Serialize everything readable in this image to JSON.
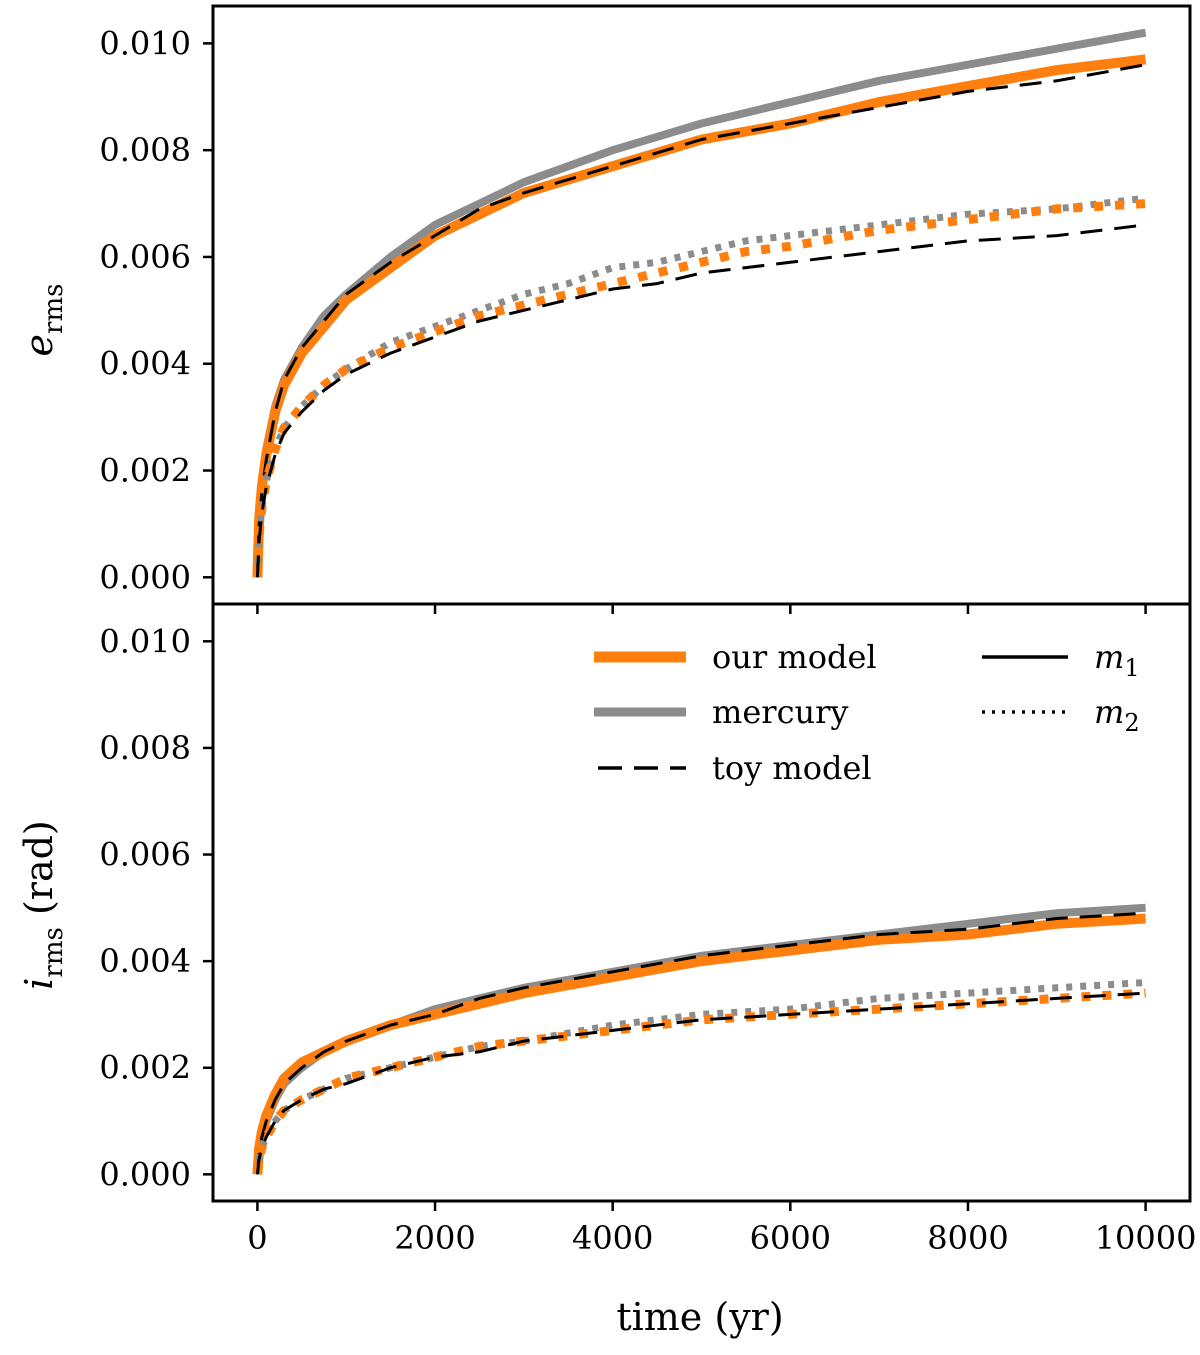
{
  "chart_data": [
    {
      "type": "line",
      "panel": "top",
      "ylabel": "e",
      "ylabel_sub": "rms",
      "xlabel": "",
      "xlim": [
        -500,
        10500
      ],
      "ylim": [
        -0.0005,
        0.0107
      ],
      "xticks": [
        0,
        2000,
        4000,
        6000,
        8000,
        10000
      ],
      "yticks": [
        0.0,
        0.002,
        0.004,
        0.006,
        0.008,
        0.01
      ],
      "ytick_labels": [
        "0.000",
        "0.002",
        "0.004",
        "0.006",
        "0.008",
        "0.010"
      ],
      "series": [
        {
          "name": "mercury m1",
          "style": "solid",
          "color": "#8c8c8c",
          "width": 8,
          "x": [
            0,
            20,
            50,
            100,
            200,
            300,
            500,
            750,
            1000,
            1500,
            2000,
            2500,
            3000,
            4000,
            5000,
            6000,
            7000,
            8000,
            9000,
            10000
          ],
          "values": [
            0,
            0.0012,
            0.0018,
            0.0024,
            0.0032,
            0.0037,
            0.0043,
            0.0049,
            0.0053,
            0.006,
            0.0066,
            0.007,
            0.0074,
            0.008,
            0.0085,
            0.0089,
            0.0093,
            0.0096,
            0.0099,
            0.0102
          ]
        },
        {
          "name": "our model m1",
          "style": "solid",
          "color": "#ff7f0e",
          "width": 10,
          "x": [
            0,
            20,
            50,
            100,
            200,
            300,
            500,
            750,
            1000,
            1500,
            2000,
            2500,
            3000,
            4000,
            5000,
            6000,
            7000,
            8000,
            9000,
            10000
          ],
          "values": [
            0,
            0.0011,
            0.0017,
            0.0023,
            0.0031,
            0.0036,
            0.0042,
            0.0047,
            0.0052,
            0.0058,
            0.0064,
            0.0068,
            0.0072,
            0.0077,
            0.0082,
            0.0085,
            0.0089,
            0.0092,
            0.0095,
            0.0097
          ]
        },
        {
          "name": "toy model m1",
          "style": "dashed",
          "color": "#000000",
          "width": 3,
          "x": [
            0,
            20,
            50,
            100,
            200,
            300,
            500,
            750,
            1000,
            1500,
            2000,
            2500,
            3000,
            4000,
            5000,
            6000,
            7000,
            8000,
            9000,
            10000
          ],
          "values": [
            0,
            0.001,
            0.0016,
            0.0022,
            0.0031,
            0.0037,
            0.0043,
            0.0048,
            0.0053,
            0.0059,
            0.0064,
            0.0069,
            0.0072,
            0.0077,
            0.0082,
            0.0085,
            0.0088,
            0.0091,
            0.0093,
            0.0096
          ]
        },
        {
          "name": "mercury m2",
          "style": "dotted",
          "color": "#8c8c8c",
          "width": 7,
          "x": [
            0,
            20,
            50,
            100,
            200,
            300,
            500,
            750,
            1000,
            1500,
            2000,
            2500,
            3000,
            3500,
            4000,
            4500,
            5000,
            5500,
            6000,
            7000,
            8000,
            9000,
            10000
          ],
          "values": [
            0,
            0.0008,
            0.0013,
            0.0018,
            0.0024,
            0.0028,
            0.0032,
            0.0036,
            0.0039,
            0.0044,
            0.0047,
            0.005,
            0.0053,
            0.0055,
            0.0058,
            0.0059,
            0.0061,
            0.0063,
            0.0064,
            0.0066,
            0.0068,
            0.0069,
            0.0071
          ]
        },
        {
          "name": "our model m2",
          "style": "dotted",
          "color": "#ff7f0e",
          "width": 9,
          "x": [
            0,
            20,
            50,
            100,
            200,
            300,
            500,
            750,
            1000,
            1500,
            2000,
            2500,
            3000,
            3500,
            4000,
            4500,
            5000,
            5500,
            6000,
            7000,
            8000,
            9000,
            10000
          ],
          "values": [
            0,
            0.0008,
            0.0013,
            0.0018,
            0.0024,
            0.0028,
            0.0032,
            0.0036,
            0.0039,
            0.0043,
            0.0046,
            0.0049,
            0.0051,
            0.0053,
            0.0055,
            0.0057,
            0.0059,
            0.0061,
            0.0062,
            0.0065,
            0.0067,
            0.0069,
            0.007
          ]
        },
        {
          "name": "toy model m2",
          "style": "dashed",
          "color": "#000000",
          "width": 3,
          "x": [
            0,
            20,
            50,
            100,
            200,
            300,
            500,
            750,
            1000,
            1500,
            2000,
            2500,
            3000,
            3500,
            4000,
            4500,
            5000,
            5500,
            6000,
            7000,
            8000,
            9000,
            10000
          ],
          "values": [
            0,
            0.0007,
            0.0012,
            0.0017,
            0.0023,
            0.0027,
            0.0031,
            0.0035,
            0.0038,
            0.0042,
            0.0045,
            0.0048,
            0.005,
            0.0052,
            0.0054,
            0.0055,
            0.0057,
            0.0058,
            0.0059,
            0.0061,
            0.0063,
            0.0064,
            0.0066
          ]
        }
      ]
    },
    {
      "type": "line",
      "panel": "bottom",
      "ylabel": "i",
      "ylabel_sub": "rms",
      "ylabel_unit": "(rad)",
      "xlabel": "time (yr)",
      "xlim": [
        -500,
        10500
      ],
      "ylim": [
        -0.0005,
        0.0107
      ],
      "xticks": [
        0,
        2000,
        4000,
        6000,
        8000,
        10000
      ],
      "xtick_labels": [
        "0",
        "2000",
        "4000",
        "6000",
        "8000",
        "10000"
      ],
      "yticks": [
        0.0,
        0.002,
        0.004,
        0.006,
        0.008,
        0.01
      ],
      "ytick_labels": [
        "0.000",
        "0.002",
        "0.004",
        "0.006",
        "0.008",
        "0.010"
      ],
      "series": [
        {
          "name": "mercury m1",
          "style": "solid",
          "color": "#8c8c8c",
          "width": 8,
          "x": [
            0,
            20,
            50,
            100,
            200,
            300,
            500,
            750,
            1000,
            1500,
            2000,
            2500,
            3000,
            4000,
            5000,
            6000,
            7000,
            8000,
            9000,
            10000
          ],
          "values": [
            0,
            0.0004,
            0.0007,
            0.001,
            0.0014,
            0.0017,
            0.002,
            0.0023,
            0.0025,
            0.0028,
            0.0031,
            0.0033,
            0.0035,
            0.0038,
            0.0041,
            0.0043,
            0.0045,
            0.0047,
            0.0049,
            0.005
          ]
        },
        {
          "name": "our model m1",
          "style": "solid",
          "color": "#ff7f0e",
          "width": 10,
          "x": [
            0,
            20,
            50,
            100,
            200,
            300,
            500,
            750,
            1000,
            1500,
            2000,
            2500,
            3000,
            4000,
            5000,
            6000,
            7000,
            8000,
            9000,
            10000
          ],
          "values": [
            0,
            0.0005,
            0.0008,
            0.0011,
            0.0015,
            0.0018,
            0.0021,
            0.0023,
            0.0025,
            0.0028,
            0.003,
            0.0032,
            0.0034,
            0.0037,
            0.004,
            0.0042,
            0.0044,
            0.0045,
            0.0047,
            0.0048
          ]
        },
        {
          "name": "toy model m1",
          "style": "dashed",
          "color": "#000000",
          "width": 3,
          "x": [
            0,
            20,
            50,
            100,
            200,
            300,
            500,
            750,
            1000,
            1500,
            2000,
            2500,
            3000,
            4000,
            5000,
            6000,
            7000,
            8000,
            9000,
            10000
          ],
          "values": [
            0,
            0.0004,
            0.0007,
            0.001,
            0.0014,
            0.0017,
            0.002,
            0.0023,
            0.0025,
            0.0028,
            0.003,
            0.0033,
            0.0035,
            0.0038,
            0.0041,
            0.0043,
            0.0045,
            0.0046,
            0.0048,
            0.0049
          ]
        },
        {
          "name": "mercury m2",
          "style": "dotted",
          "color": "#8c8c8c",
          "width": 7,
          "x": [
            0,
            20,
            50,
            100,
            200,
            300,
            500,
            750,
            1000,
            1500,
            2000,
            2500,
            3000,
            4000,
            5000,
            6000,
            7000,
            8000,
            9000,
            10000
          ],
          "values": [
            0,
            0.0003,
            0.0005,
            0.0007,
            0.001,
            0.0012,
            0.0014,
            0.0016,
            0.0018,
            0.002,
            0.0022,
            0.0024,
            0.0025,
            0.0028,
            0.003,
            0.0031,
            0.0033,
            0.0034,
            0.0035,
            0.0036
          ]
        },
        {
          "name": "our model m2",
          "style": "dotted",
          "color": "#ff7f0e",
          "width": 9,
          "x": [
            0,
            20,
            50,
            100,
            200,
            300,
            500,
            750,
            1000,
            1500,
            2000,
            2500,
            3000,
            4000,
            5000,
            6000,
            7000,
            8000,
            9000,
            10000
          ],
          "values": [
            0,
            0.0003,
            0.0005,
            0.0007,
            0.001,
            0.0012,
            0.0014,
            0.0016,
            0.0018,
            0.002,
            0.0022,
            0.0024,
            0.0025,
            0.0027,
            0.0029,
            0.003,
            0.0031,
            0.0032,
            0.0033,
            0.0034
          ]
        },
        {
          "name": "toy model m2",
          "style": "dashed",
          "color": "#000000",
          "width": 3,
          "x": [
            0,
            20,
            50,
            100,
            200,
            300,
            500,
            750,
            1000,
            1500,
            2000,
            2500,
            3000,
            4000,
            5000,
            6000,
            7000,
            8000,
            9000,
            10000
          ],
          "values": [
            0,
            0.0003,
            0.0005,
            0.0007,
            0.001,
            0.0012,
            0.0014,
            0.0016,
            0.0017,
            0.002,
            0.0022,
            0.0023,
            0.0025,
            0.0027,
            0.0029,
            0.003,
            0.0031,
            0.0032,
            0.0033,
            0.0034
          ]
        }
      ]
    }
  ],
  "legend": {
    "placement": "top-right of bottom panel",
    "items": [
      {
        "label": "our model",
        "color": "#ff7f0e",
        "style": "solid-thick"
      },
      {
        "label": "mercury",
        "color": "#8c8c8c",
        "style": "solid-thick"
      },
      {
        "label": "toy model",
        "color": "#000000",
        "style": "dashed"
      },
      {
        "label": "m",
        "sub": "1",
        "color": "#000000",
        "style": "solid"
      },
      {
        "label": "m",
        "sub": "2",
        "color": "#000000",
        "style": "dotted"
      }
    ]
  },
  "colors": {
    "our_model": "#ff7f0e",
    "mercury": "#8c8c8c",
    "toy_model": "#000000"
  }
}
